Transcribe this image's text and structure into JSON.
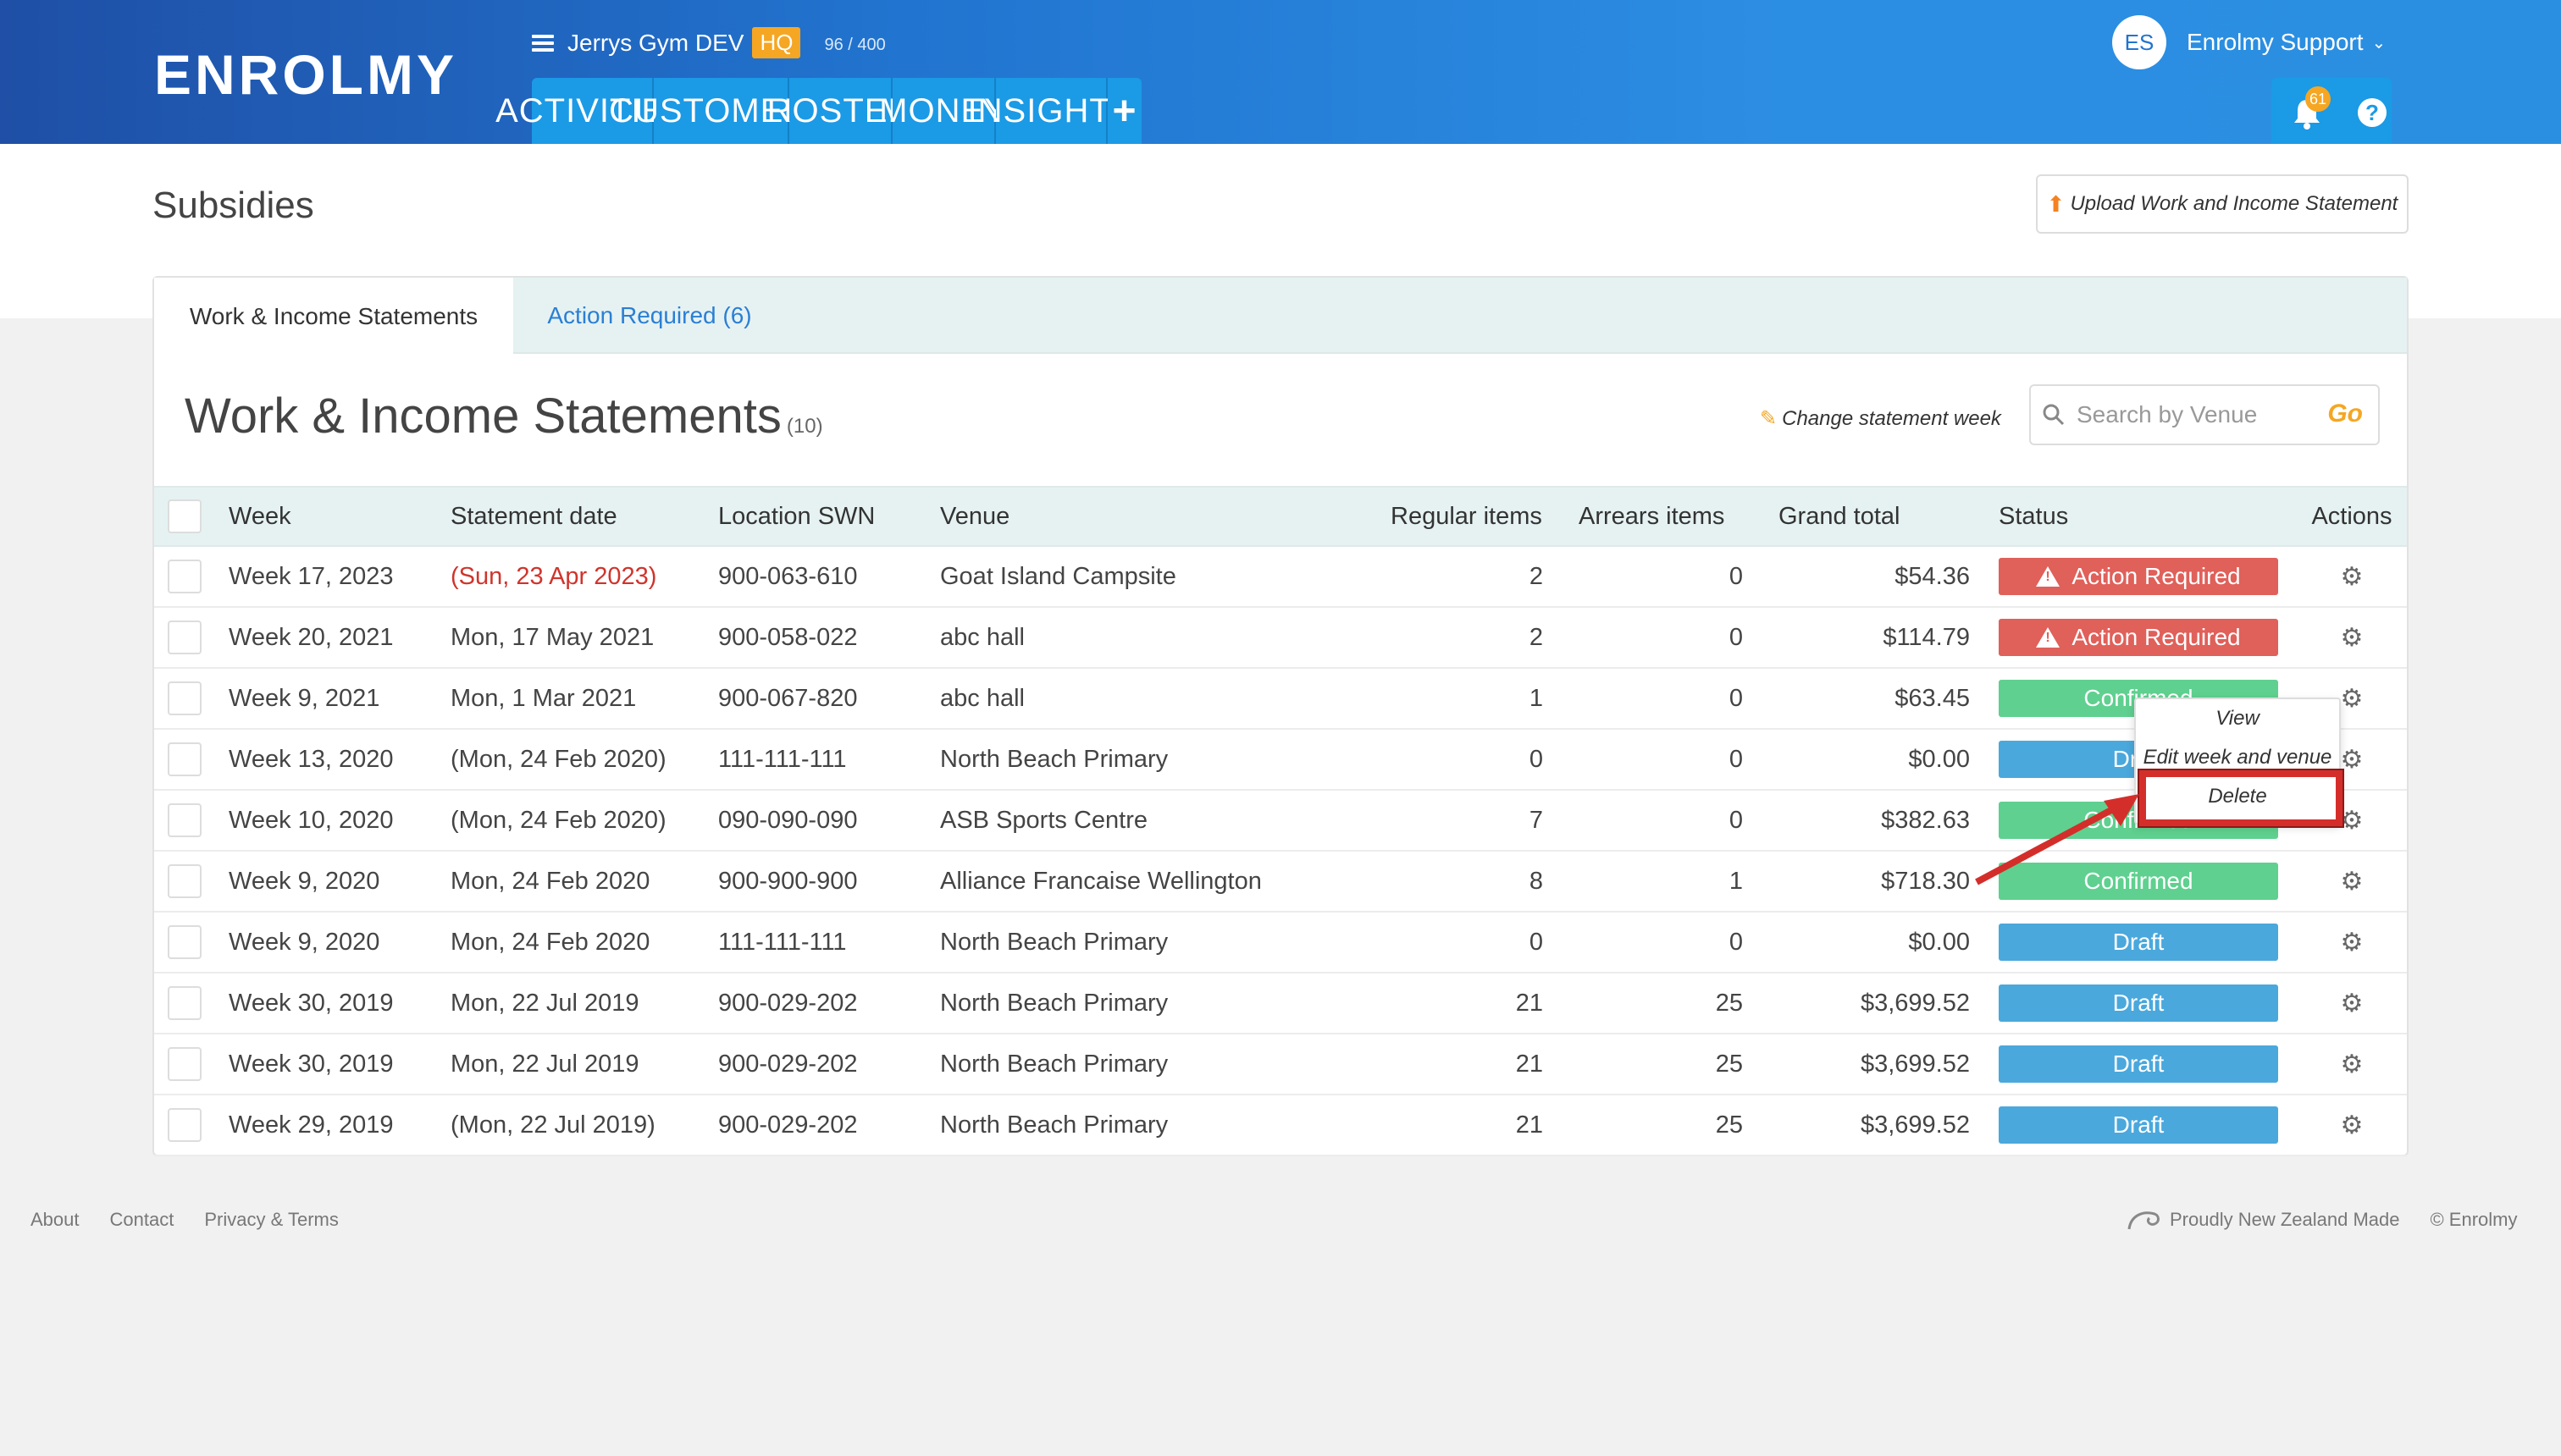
{
  "header": {
    "logo": "ENROLMY",
    "gym_name": "Jerrys Gym DEV",
    "hq_badge": "HQ",
    "usage": "96 / 400",
    "nav": [
      "ACTIVITIES",
      "CUSTOMERS",
      "ROSTER",
      "MONEY",
      "INSIGHTS"
    ],
    "nav_plus": "+",
    "user_initials": "ES",
    "user_name": "Enrolmy Support",
    "notification_count": "61",
    "help": "?"
  },
  "page": {
    "title": "Subsidies",
    "upload_button": "Upload Work and Income Statement"
  },
  "tabs": [
    {
      "label": "Work & Income Statements",
      "active": true
    },
    {
      "label": "Action Required (6)",
      "active": false
    }
  ],
  "section": {
    "title": "Work & Income Statements",
    "count": "(10)",
    "change_week": "Change statement week",
    "search_placeholder": "Search by Venue",
    "search_go": "Go"
  },
  "table": {
    "columns": [
      "Week",
      "Statement date",
      "Location SWN",
      "Venue",
      "Regular items",
      "Arrears items",
      "Grand total",
      "Status",
      "Actions"
    ],
    "rows": [
      {
        "week": "Week 17, 2023",
        "date": "(Sun, 23 Apr 2023)",
        "date_red": true,
        "swn": "900-063-610",
        "venue": "Goat Island Campsite",
        "regular": "2",
        "arrears": "0",
        "total": "$54.36",
        "status": "Action Required",
        "status_type": "action"
      },
      {
        "week": "Week 20, 2021",
        "date": "Mon, 17 May 2021",
        "date_red": false,
        "swn": "900-058-022",
        "venue": "abc hall",
        "regular": "2",
        "arrears": "0",
        "total": "$114.79",
        "status": "Action Required",
        "status_type": "action"
      },
      {
        "week": "Week 9, 2021",
        "date": "Mon, 1 Mar 2021",
        "date_red": false,
        "swn": "900-067-820",
        "venue": "abc hall",
        "regular": "1",
        "arrears": "0",
        "total": "$63.45",
        "status": "Confirmed",
        "status_type": "confirmed"
      },
      {
        "week": "Week 13, 2020",
        "date": "(Mon, 24 Feb 2020)",
        "date_red": false,
        "swn": "111-111-111",
        "venue": "North Beach Primary",
        "regular": "0",
        "arrears": "0",
        "total": "$0.00",
        "status": "Draft",
        "status_type": "draft"
      },
      {
        "week": "Week 10, 2020",
        "date": "(Mon, 24 Feb 2020)",
        "date_red": false,
        "swn": "090-090-090",
        "venue": "ASB Sports Centre",
        "regular": "7",
        "arrears": "0",
        "total": "$382.63",
        "status": "Confirmed",
        "status_type": "confirmed"
      },
      {
        "week": "Week 9, 2020",
        "date": "Mon, 24 Feb 2020",
        "date_red": false,
        "swn": "900-900-900",
        "venue": "Alliance Francaise Wellington",
        "regular": "8",
        "arrears": "1",
        "total": "$718.30",
        "status": "Confirmed",
        "status_type": "confirmed"
      },
      {
        "week": "Week 9, 2020",
        "date": "Mon, 24 Feb 2020",
        "date_red": false,
        "swn": "111-111-111",
        "venue": "North Beach Primary",
        "regular": "0",
        "arrears": "0",
        "total": "$0.00",
        "status": "Draft",
        "status_type": "draft"
      },
      {
        "week": "Week 30, 2019",
        "date": "Mon, 22 Jul 2019",
        "date_red": false,
        "swn": "900-029-202",
        "venue": "North Beach Primary",
        "regular": "21",
        "arrears": "25",
        "total": "$3,699.52",
        "status": "Draft",
        "status_type": "draft"
      },
      {
        "week": "Week 30, 2019",
        "date": "Mon, 22 Jul 2019",
        "date_red": false,
        "swn": "900-029-202",
        "venue": "North Beach Primary",
        "regular": "21",
        "arrears": "25",
        "total": "$3,699.52",
        "status": "Draft",
        "status_type": "draft"
      },
      {
        "week": "Week 29, 2019",
        "date": "(Mon, 22 Jul 2019)",
        "date_red": false,
        "swn": "900-029-202",
        "venue": "North Beach Primary",
        "regular": "21",
        "arrears": "25",
        "total": "$3,699.52",
        "status": "Draft",
        "status_type": "draft"
      }
    ]
  },
  "dropdown": {
    "items": [
      "View",
      "Edit week and venue",
      "Delete"
    ]
  },
  "footer": {
    "links": [
      "About",
      "Contact",
      "Privacy & Terms"
    ],
    "made_in": "Proudly New Zealand Made",
    "copyright": "© Enrolmy"
  },
  "colors": {
    "action_required": "#e0605a",
    "confirmed": "#5fd08f",
    "draft": "#4aa8dc",
    "accent": "#f5a623",
    "highlight": "#d42e2b"
  },
  "icons": [
    "menu-icon",
    "bell-icon",
    "help-icon",
    "upload-icon",
    "pencil-icon",
    "search-icon",
    "warning-icon",
    "gear-icon",
    "fern-icon",
    "chevron-down-icon"
  ]
}
